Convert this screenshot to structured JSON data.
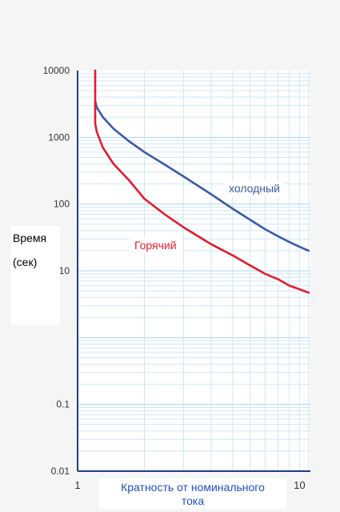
{
  "chart_data": {
    "type": "line",
    "ylabel_line1": "Время",
    "ylabel_line2": "(сек)",
    "xlabel_line1": "Кратность от номинального",
    "xlabel_line2": "тока",
    "x_scale": "log",
    "y_scale": "log",
    "xlim": [
      1,
      11.2
    ],
    "ylim": [
      0.01,
      10000
    ],
    "x_ticks": [
      {
        "value": 1,
        "label": "1"
      },
      {
        "value": 10,
        "label": "10"
      }
    ],
    "y_ticks": [
      {
        "value": 10000,
        "label": "10000"
      },
      {
        "value": 1000,
        "label": "1000"
      },
      {
        "value": 100,
        "label": "100"
      },
      {
        "value": 10,
        "label": "10"
      },
      {
        "value": 1,
        "label": ""
      },
      {
        "value": 0.1,
        "label": "0.1"
      },
      {
        "value": 0.01,
        "label": "0.01"
      }
    ],
    "grid": true,
    "series": [
      {
        "name": "холодный",
        "color": "#3a5aa8",
        "x": [
          1.2,
          1.2,
          1.22,
          1.3,
          1.45,
          1.7,
          2.0,
          2.5,
          3.0,
          4.0,
          5.0,
          6.0,
          7.0,
          8.0,
          9.0,
          10.0,
          11.0
        ],
        "y": [
          2700,
          3500,
          2800,
          2000,
          1350,
          880,
          600,
          380,
          260,
          140,
          85,
          58,
          42,
          33,
          27,
          23,
          20
        ]
      },
      {
        "name": "Горячий",
        "color": "#e21b2c",
        "x": [
          1.2,
          1.2,
          1.22,
          1.3,
          1.45,
          1.7,
          2.0,
          2.5,
          3.0,
          4.0,
          5.0,
          6.0,
          7.0,
          8.0,
          9.0,
          10.0,
          11.0
        ],
        "y": [
          10000,
          1600,
          1200,
          700,
          400,
          230,
          120,
          68,
          45,
          25,
          17,
          12,
          9,
          7.5,
          6,
          5.3,
          4.7
        ]
      }
    ]
  }
}
